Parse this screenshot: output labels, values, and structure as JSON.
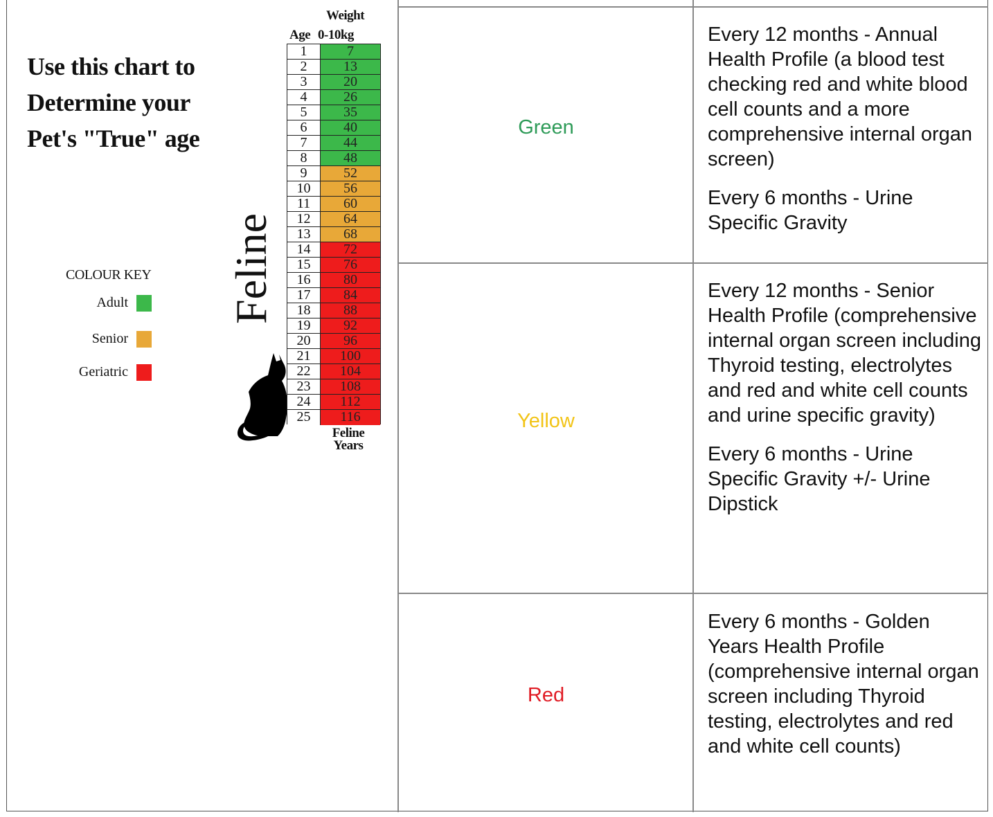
{
  "chart_image": {
    "intro_lines": [
      "Use this chart to",
      "Determine your",
      "Pet's \"True\" age"
    ],
    "colour_key": {
      "title": "COLOUR KEY",
      "items": [
        {
          "label": "Adult",
          "color": "#3cb84a"
        },
        {
          "label": "Senior",
          "color": "#e8a838"
        },
        {
          "label": "Geriatric",
          "color": "#ee1c1c"
        }
      ]
    },
    "species_label": "Feline",
    "column_headers": {
      "age": "Age",
      "weight_line1": "Weight",
      "weight_line2": "0-10kg"
    },
    "footer_lines": [
      "Feline",
      "Years"
    ],
    "rows": [
      {
        "age": "1",
        "years": "7",
        "band": "adult"
      },
      {
        "age": "2",
        "years": "13",
        "band": "adult"
      },
      {
        "age": "3",
        "years": "20",
        "band": "adult"
      },
      {
        "age": "4",
        "years": "26",
        "band": "adult"
      },
      {
        "age": "5",
        "years": "35",
        "band": "adult"
      },
      {
        "age": "6",
        "years": "40",
        "band": "adult"
      },
      {
        "age": "7",
        "years": "44",
        "band": "adult"
      },
      {
        "age": "8",
        "years": "48",
        "band": "adult"
      },
      {
        "age": "9",
        "years": "52",
        "band": "senior"
      },
      {
        "age": "10",
        "years": "56",
        "band": "senior"
      },
      {
        "age": "11",
        "years": "60",
        "band": "senior"
      },
      {
        "age": "12",
        "years": "64",
        "band": "senior"
      },
      {
        "age": "13",
        "years": "68",
        "band": "senior"
      },
      {
        "age": "14",
        "years": "72",
        "band": "geriatric"
      },
      {
        "age": "15",
        "years": "76",
        "band": "geriatric"
      },
      {
        "age": "16",
        "years": "80",
        "band": "geriatric"
      },
      {
        "age": "17",
        "years": "84",
        "band": "geriatric"
      },
      {
        "age": "18",
        "years": "88",
        "band": "geriatric"
      },
      {
        "age": "19",
        "years": "92",
        "band": "geriatric"
      },
      {
        "age": "20",
        "years": "96",
        "band": "geriatric"
      },
      {
        "age": "21",
        "years": "100",
        "band": "geriatric"
      },
      {
        "age": "22",
        "years": "104",
        "band": "geriatric"
      },
      {
        "age": "23",
        "years": "108",
        "band": "geriatric"
      },
      {
        "age": "24",
        "years": "112",
        "band": "geriatric"
      },
      {
        "age": "25",
        "years": "116",
        "band": "geriatric"
      }
    ],
    "band_colors": {
      "adult": "#3cb84a",
      "senior": "#e8a838",
      "geriatric": "#ee1c1c"
    },
    "icon": "cat-silhouette-icon"
  },
  "table": {
    "rows": [
      {
        "label": "Green",
        "label_color": "#2e9b58",
        "paragraphs": [
          "Every 12 months - Annual Health Profile (a blood test checking red and white blood cell counts and a more comprehensive internal organ screen)",
          "Every 6 months - Urine Specific Gravity"
        ]
      },
      {
        "label": "Yellow",
        "label_color": "#f2c417",
        "paragraphs": [
          "Every 12 months - Senior Health Profile (comprehensive internal organ screen including Thyroid testing, electrolytes and red and white cell counts and urine specific gravity)",
          "Every 6 months - Urine Specific Gravity +/- Urine Dipstick"
        ]
      },
      {
        "label": "Red",
        "label_color": "#e01b24",
        "paragraphs": [
          "Every 6 months - Golden Years Health Profile (comprehensive internal organ screen including Thyroid testing, electrolytes and red and white cell counts)"
        ]
      }
    ]
  }
}
